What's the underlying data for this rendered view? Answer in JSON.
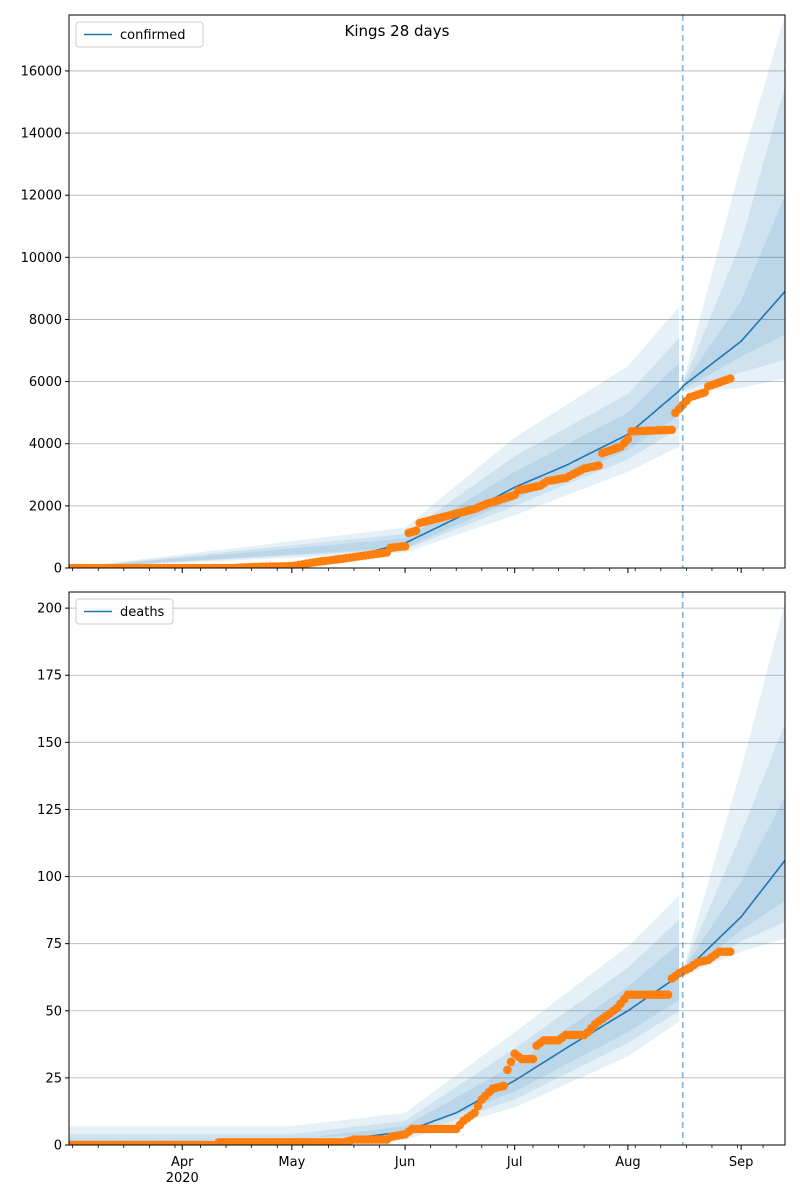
{
  "chart_data": {
    "type": "line",
    "title": "Kings 28 days",
    "x_axis": {
      "type": "date",
      "range": [
        "2020-03-01",
        "2020-09-13"
      ],
      "month_ticks": [
        {
          "date": "2020-04-01",
          "label": "Apr"
        },
        {
          "date": "2020-05-01",
          "label": "May"
        },
        {
          "date": "2020-06-01",
          "label": "Jun"
        },
        {
          "date": "2020-07-01",
          "label": "Jul"
        },
        {
          "date": "2020-08-01",
          "label": "Aug"
        },
        {
          "date": "2020-09-01",
          "label": "Sep"
        }
      ],
      "year_label": {
        "date": "2020-04-01",
        "label": "2020"
      },
      "minor_ticks": "weekly (Mondays)"
    },
    "forecast_start": "2020-08-16",
    "colors": {
      "model": "#1f77b4",
      "observed": "#ff7f0e",
      "band": "#1f77b4",
      "grid": "#b0b0b0"
    },
    "panels": [
      {
        "id": "confirmed",
        "legend": "confirmed",
        "legend_position": "top-left",
        "grid": "horizontal",
        "ylim": [
          0,
          17800
        ],
        "yticks": [
          0,
          2000,
          4000,
          6000,
          8000,
          10000,
          12000,
          14000,
          16000
        ],
        "model_series": {
          "name": "confirmed",
          "points": [
            [
              "2020-03-01",
              0
            ],
            [
              "2020-05-01",
              100
            ],
            [
              "2020-05-15",
              300
            ],
            [
              "2020-06-01",
              800
            ],
            [
              "2020-06-15",
              1600
            ],
            [
              "2020-07-01",
              2600
            ],
            [
              "2020-07-15",
              3300
            ],
            [
              "2020-08-01",
              4300
            ],
            [
              "2020-08-15",
              5700
            ],
            [
              "2020-08-16",
              5850
            ],
            [
              "2020-09-01",
              7300
            ],
            [
              "2020-09-13",
              8900
            ]
          ]
        },
        "bands": [
          {
            "lower": [
              [
                "2020-03-01",
                0
              ],
              [
                "2020-06-01",
                500
              ],
              [
                "2020-07-01",
                1700
              ],
              [
                "2020-08-01",
                3100
              ],
              [
                "2020-08-15",
                3900
              ],
              [
                "2020-08-16",
                5650
              ],
              [
                "2020-09-01",
                5800
              ],
              [
                "2020-09-13",
                6100
              ]
            ],
            "upper": [
              [
                "2020-03-01",
                0
              ],
              [
                "2020-06-01",
                1300
              ],
              [
                "2020-07-01",
                4200
              ],
              [
                "2020-08-01",
                6500
              ],
              [
                "2020-08-15",
                8400
              ],
              [
                "2020-08-16",
                5950
              ],
              [
                "2020-09-01",
                13000
              ],
              [
                "2020-09-13",
                17800
              ]
            ]
          },
          {
            "lower": [
              [
                "2020-03-01",
                0
              ],
              [
                "2020-06-01",
                600
              ],
              [
                "2020-07-01",
                2000
              ],
              [
                "2020-08-01",
                3500
              ],
              [
                "2020-08-15",
                4500
              ],
              [
                "2020-08-16",
                5700
              ],
              [
                "2020-09-01",
                6300
              ],
              [
                "2020-09-13",
                6700
              ]
            ],
            "upper": [
              [
                "2020-03-01",
                0
              ],
              [
                "2020-06-01",
                1100
              ],
              [
                "2020-07-01",
                3600
              ],
              [
                "2020-08-01",
                5600
              ],
              [
                "2020-08-15",
                7400
              ],
              [
                "2020-08-16",
                5900
              ],
              [
                "2020-09-01",
                10500
              ],
              [
                "2020-09-13",
                15500
              ]
            ]
          },
          {
            "lower": [
              [
                "2020-03-01",
                0
              ],
              [
                "2020-06-01",
                650
              ],
              [
                "2020-07-01",
                2200
              ],
              [
                "2020-08-01",
                3800
              ],
              [
                "2020-08-15",
                4900
              ],
              [
                "2020-08-16",
                5750
              ],
              [
                "2020-09-01",
                6800
              ],
              [
                "2020-09-13",
                7500
              ]
            ],
            "upper": [
              [
                "2020-03-01",
                0
              ],
              [
                "2020-06-01",
                950
              ],
              [
                "2020-07-01",
                3100
              ],
              [
                "2020-08-01",
                5000
              ],
              [
                "2020-08-15",
                6600
              ],
              [
                "2020-08-16",
                5880
              ],
              [
                "2020-09-01",
                8600
              ],
              [
                "2020-09-13",
                12000
              ]
            ]
          }
        ],
        "observed": {
          "points": [
            [
              "2020-03-01",
              0
            ],
            [
              "2020-04-15",
              0
            ],
            [
              "2020-04-20",
              30
            ],
            [
              "2020-05-01",
              60
            ],
            [
              "2020-05-08",
              200
            ],
            [
              "2020-05-15",
              300
            ],
            [
              "2020-05-22",
              420
            ],
            [
              "2020-05-27",
              500
            ],
            [
              "2020-05-28",
              650
            ],
            [
              "2020-06-01",
              700
            ],
            [
              "2020-06-01",
              1100
            ],
            [
              "2020-06-04",
              1200
            ],
            [
              "2020-06-05",
              1450
            ],
            [
              "2020-06-10",
              1600
            ],
            [
              "2020-06-15",
              1750
            ],
            [
              "2020-06-20",
              1900
            ],
            [
              "2020-06-23",
              2050
            ],
            [
              "2020-07-01",
              2350
            ],
            [
              "2020-07-02",
              2500
            ],
            [
              "2020-07-08",
              2650
            ],
            [
              "2020-07-10",
              2800
            ],
            [
              "2020-07-15",
              2900
            ],
            [
              "2020-07-20",
              3200
            ],
            [
              "2020-07-24",
              3300
            ],
            [
              "2020-07-25",
              3700
            ],
            [
              "2020-07-30",
              3900
            ],
            [
              "2020-08-01",
              4150
            ],
            [
              "2020-08-02",
              4400
            ],
            [
              "2020-08-13",
              4450
            ],
            [
              "2020-08-14",
              5000
            ],
            [
              "2020-08-18",
              5500
            ],
            [
              "2020-08-22",
              5650
            ],
            [
              "2020-08-23",
              5850
            ],
            [
              "2020-08-29",
              6100
            ]
          ]
        }
      },
      {
        "id": "deaths",
        "legend": "deaths",
        "legend_position": "top-left",
        "grid": "horizontal",
        "ylim": [
          0,
          206
        ],
        "yticks": [
          0,
          25,
          50,
          75,
          100,
          125,
          150,
          175,
          200
        ],
        "model_series": {
          "name": "deaths",
          "points": [
            [
              "2020-03-01",
              0
            ],
            [
              "2020-05-01",
              1
            ],
            [
              "2020-05-15",
              2
            ],
            [
              "2020-06-01",
              5
            ],
            [
              "2020-06-15",
              12
            ],
            [
              "2020-07-01",
              24
            ],
            [
              "2020-07-15",
              36
            ],
            [
              "2020-08-01",
              50
            ],
            [
              "2020-08-16",
              64
            ],
            [
              "2020-09-01",
              85
            ],
            [
              "2020-09-13",
              106
            ]
          ]
        },
        "bands": [
          {
            "lower": [
              [
                "2020-03-01",
                0
              ],
              [
                "2020-06-01",
                2
              ],
              [
                "2020-07-01",
                14
              ],
              [
                "2020-08-01",
                33
              ],
              [
                "2020-08-15",
                46
              ],
              [
                "2020-08-16",
                63
              ],
              [
                "2020-09-01",
                72
              ],
              [
                "2020-09-13",
                77
              ]
            ],
            "upper": [
              [
                "2020-03-01",
                7
              ],
              [
                "2020-05-01",
                7
              ],
              [
                "2020-06-01",
                12
              ],
              [
                "2020-07-01",
                42
              ],
              [
                "2020-08-01",
                74
              ],
              [
                "2020-08-15",
                93
              ],
              [
                "2020-08-16",
                65
              ],
              [
                "2020-09-01",
                140
              ],
              [
                "2020-09-13",
                202
              ]
            ]
          },
          {
            "lower": [
              [
                "2020-03-01",
                0
              ],
              [
                "2020-06-01",
                3
              ],
              [
                "2020-07-01",
                17
              ],
              [
                "2020-08-01",
                38
              ],
              [
                "2020-08-15",
                50
              ],
              [
                "2020-08-16",
                63
              ],
              [
                "2020-09-01",
                76
              ],
              [
                "2020-09-13",
                83
              ]
            ],
            "upper": [
              [
                "2020-03-01",
                4
              ],
              [
                "2020-05-01",
                4
              ],
              [
                "2020-06-01",
                9
              ],
              [
                "2020-07-01",
                36
              ],
              [
                "2020-08-01",
                66
              ],
              [
                "2020-08-15",
                84
              ],
              [
                "2020-08-16",
                65
              ],
              [
                "2020-09-01",
                116
              ],
              [
                "2020-09-13",
                157
              ]
            ]
          },
          {
            "lower": [
              [
                "2020-03-01",
                0
              ],
              [
                "2020-06-01",
                4
              ],
              [
                "2020-07-01",
                20
              ],
              [
                "2020-08-01",
                42
              ],
              [
                "2020-08-15",
                54
              ],
              [
                "2020-08-16",
                63
              ],
              [
                "2020-09-01",
                80
              ],
              [
                "2020-09-13",
                91
              ]
            ],
            "upper": [
              [
                "2020-03-01",
                2
              ],
              [
                "2020-05-01",
                2
              ],
              [
                "2020-06-01",
                7
              ],
              [
                "2020-07-01",
                30
              ],
              [
                "2020-08-01",
                59
              ],
              [
                "2020-08-15",
                75
              ],
              [
                "2020-08-16",
                65
              ],
              [
                "2020-09-01",
                98
              ],
              [
                "2020-09-13",
                130
              ]
            ]
          }
        ],
        "observed": {
          "points": [
            [
              "2020-03-01",
              0
            ],
            [
              "2020-04-10",
              0
            ],
            [
              "2020-04-11",
              1
            ],
            [
              "2020-05-15",
              1
            ],
            [
              "2020-05-18",
              2
            ],
            [
              "2020-05-27",
              2
            ],
            [
              "2020-05-28",
              3
            ],
            [
              "2020-06-01",
              4
            ],
            [
              "2020-06-03",
              6
            ],
            [
              "2020-06-15",
              6
            ],
            [
              "2020-06-17",
              9
            ],
            [
              "2020-06-20",
              12
            ],
            [
              "2020-06-22",
              17
            ],
            [
              "2020-06-25",
              21
            ],
            [
              "2020-06-28",
              22
            ],
            [
              "2020-06-29",
              28
            ],
            [
              "2020-07-01",
              34
            ],
            [
              "2020-07-03",
              32
            ],
            [
              "2020-07-06",
              32
            ],
            [
              "2020-07-07",
              37
            ],
            [
              "2020-07-09",
              39
            ],
            [
              "2020-07-13",
              39
            ],
            [
              "2020-07-15",
              41
            ],
            [
              "2020-07-20",
              41
            ],
            [
              "2020-07-21",
              42
            ],
            [
              "2020-07-23",
              45
            ],
            [
              "2020-07-26",
              48
            ],
            [
              "2020-07-29",
              51
            ],
            [
              "2020-08-01",
              56
            ],
            [
              "2020-08-12",
              56
            ],
            [
              "2020-08-13",
              62
            ],
            [
              "2020-08-15",
              64
            ],
            [
              "2020-08-18",
              66
            ],
            [
              "2020-08-20",
              68
            ],
            [
              "2020-08-23",
              69
            ],
            [
              "2020-08-26",
              72
            ],
            [
              "2020-08-29",
              72
            ]
          ]
        }
      }
    ]
  }
}
